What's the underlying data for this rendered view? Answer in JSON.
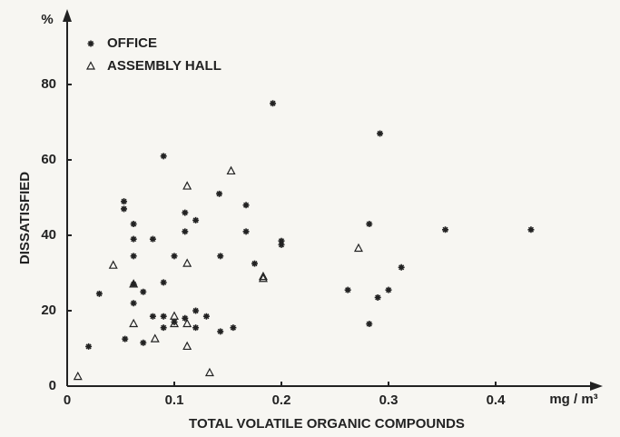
{
  "chart_data": {
    "type": "scatter",
    "xlabel": "TOTAL VOLATILE ORGANIC COMPOUNDS",
    "ylabel": "DISSATISFIED",
    "xunit": "mg / m³",
    "yunit": "%",
    "xlim": [
      0,
      0.5
    ],
    "ylim": [
      0,
      100
    ],
    "xticks": [
      0,
      0.1,
      0.2,
      0.3,
      0.4
    ],
    "yticks": [
      0,
      20,
      40,
      60,
      80
    ],
    "grid": false,
    "legend": "upper left",
    "series": [
      {
        "name": "OFFICE",
        "marker": "star",
        "color": "#222222",
        "x": [
          0.02,
          0.03,
          0.053,
          0.053,
          0.054,
          0.062,
          0.062,
          0.062,
          0.062,
          0.062,
          0.071,
          0.071,
          0.08,
          0.08,
          0.09,
          0.09,
          0.09,
          0.09,
          0.1,
          0.1,
          0.11,
          0.11,
          0.11,
          0.12,
          0.12,
          0.12,
          0.13,
          0.142,
          0.143,
          0.143,
          0.155,
          0.167,
          0.167,
          0.175,
          0.192,
          0.2,
          0.2,
          0.262,
          0.29,
          0.3,
          0.282,
          0.282,
          0.292,
          0.312,
          0.353,
          0.433
        ],
        "y": [
          10.5,
          24.5,
          49,
          47,
          12.5,
          43,
          39,
          34.5,
          27,
          22,
          25,
          11.5,
          39,
          18.5,
          18.5,
          15.5,
          27.5,
          61,
          17,
          34.5,
          46,
          41,
          18,
          44,
          20,
          15.5,
          18.5,
          51,
          34.5,
          14.5,
          15.5,
          48,
          41,
          32.5,
          75,
          38.5,
          37.5,
          25.5,
          23.5,
          25.5,
          43,
          16.5,
          67,
          31.5,
          41.5,
          41.5
        ]
      },
      {
        "name": "ASSEMBLY HALL",
        "marker": "triangle",
        "color": "#222222",
        "x": [
          0.01,
          0.043,
          0.062,
          0.062,
          0.082,
          0.1,
          0.1,
          0.112,
          0.112,
          0.112,
          0.112,
          0.133,
          0.153,
          0.183,
          0.183,
          0.272
        ],
        "y": [
          2.5,
          32,
          27,
          16.5,
          12.5,
          18.5,
          16.5,
          53,
          32.5,
          16.5,
          10.5,
          3.5,
          57,
          29,
          28.5,
          36.5
        ]
      }
    ]
  }
}
